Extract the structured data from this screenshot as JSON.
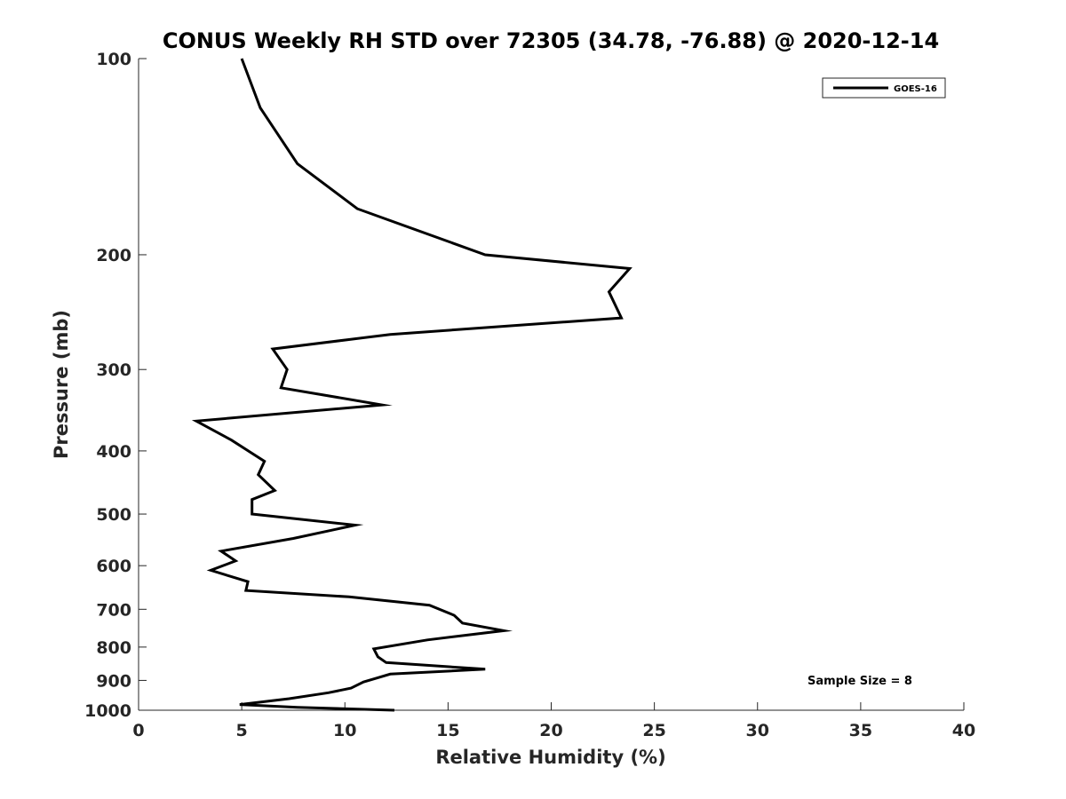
{
  "chart_data": {
    "type": "line",
    "title": "CONUS Weekly RH STD over 72305 (34.78, -76.88) @ 2020-12-14",
    "xlabel": "Relative Humidity (%)",
    "ylabel": "Pressure (mb)",
    "xlim": [
      0,
      40
    ],
    "ylim": [
      100,
      1000
    ],
    "y_scale": "log",
    "y_reversed": true,
    "x_ticks": [
      "0",
      "5",
      "10",
      "15",
      "20",
      "25",
      "30",
      "35",
      "40"
    ],
    "y_ticks": [
      "100",
      "200",
      "300",
      "400",
      "500",
      "600",
      "700",
      "800",
      "900",
      "1000"
    ],
    "grid": false,
    "legend_position": "top-right",
    "series": [
      {
        "name": "GOES-16",
        "color": "#000000",
        "x": [
          5.0,
          5.9,
          7.7,
          10.6,
          16.8,
          23.8,
          22.8,
          23.4,
          12.2,
          6.5,
          7.2,
          6.9,
          11.8,
          2.8,
          4.5,
          6.1,
          5.8,
          6.6,
          5.5,
          5.5,
          10.5,
          7.5,
          4.0,
          4.7,
          3.5,
          5.3,
          5.2,
          10.2,
          14.1,
          15.3,
          15.7,
          17.7,
          14.0,
          11.4,
          11.6,
          12.0,
          16.8,
          12.2,
          10.9,
          10.3,
          9.2,
          7.3,
          4.9,
          7.7,
          12.4
        ],
        "y": [
          100,
          119,
          145,
          170,
          200,
          210,
          228,
          250,
          265,
          279,
          300,
          320,
          340,
          360,
          385,
          415,
          435,
          460,
          475,
          500,
          520,
          545,
          570,
          590,
          610,
          635,
          655,
          670,
          690,
          715,
          735,
          755,
          780,
          805,
          828,
          845,
          865,
          880,
          905,
          925,
          940,
          960,
          980,
          990,
          1000
        ]
      }
    ],
    "annotation": "Sample Size = 8"
  }
}
